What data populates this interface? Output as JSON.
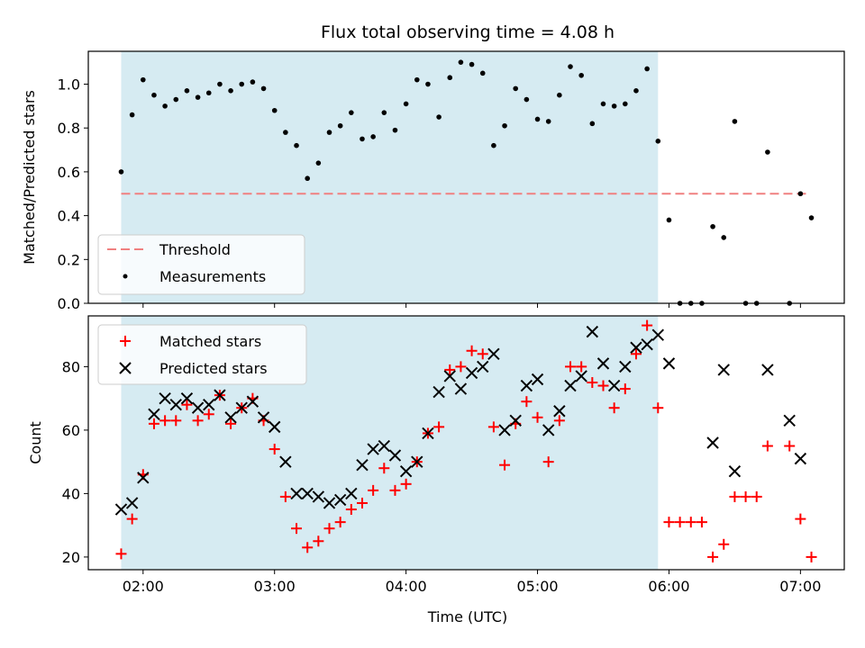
{
  "title": "Flux total observing time = 4.08 h",
  "colors": {
    "span": "#add8e6",
    "threshold": "#f08080",
    "measurement": "#000000",
    "matched": "#ff0000",
    "predicted": "#000000"
  },
  "chart_data": [
    {
      "type": "scatter",
      "ylabel": "Matched/Predicted stars",
      "xlabel": "",
      "xlim": [
        "01:35",
        "07:20"
      ],
      "ylim": [
        0,
        1.15
      ],
      "yticks": [
        "0.0",
        "0.2",
        "0.4",
        "0.6",
        "0.8",
        "1.0"
      ],
      "shaded_span": [
        "01:50",
        "05:55"
      ],
      "threshold": {
        "name": "Threshold",
        "value": 0.5,
        "x_range": [
          "01:50",
          "07:03"
        ],
        "style": "dashed"
      },
      "legend": {
        "location": "lower-left",
        "entries": [
          "Threshold",
          "Measurements"
        ]
      },
      "series": [
        {
          "name": "Measurements",
          "x": [
            "01:50",
            "01:55",
            "02:00",
            "02:05",
            "02:10",
            "02:15",
            "02:20",
            "02:25",
            "02:30",
            "02:35",
            "02:40",
            "02:45",
            "02:50",
            "02:55",
            "03:00",
            "03:05",
            "03:10",
            "03:15",
            "03:20",
            "03:25",
            "03:30",
            "03:35",
            "03:40",
            "03:45",
            "03:50",
            "03:55",
            "04:00",
            "04:05",
            "04:10",
            "04:15",
            "04:20",
            "04:25",
            "04:30",
            "04:35",
            "04:40",
            "04:45",
            "04:50",
            "04:55",
            "05:00",
            "05:05",
            "05:10",
            "05:15",
            "05:20",
            "05:25",
            "05:30",
            "05:35",
            "05:40",
            "05:45",
            "05:50",
            "05:55",
            "06:00",
            "06:05",
            "06:10",
            "06:15",
            "06:20",
            "06:25",
            "06:30",
            "06:35",
            "06:40",
            "06:45",
            "06:55",
            "07:00",
            "07:05"
          ],
          "y": [
            0.6,
            0.86,
            1.02,
            0.95,
            0.9,
            0.93,
            0.97,
            0.94,
            0.96,
            1.0,
            0.97,
            1.0,
            1.01,
            0.98,
            0.88,
            0.78,
            0.72,
            0.57,
            0.64,
            0.78,
            0.81,
            0.87,
            0.75,
            0.76,
            0.87,
            0.79,
            0.91,
            1.02,
            1.0,
            0.85,
            1.03,
            1.1,
            1.09,
            1.05,
            0.72,
            0.81,
            0.98,
            0.93,
            0.84,
            0.83,
            0.95,
            1.08,
            1.04,
            0.82,
            0.91,
            0.9,
            0.91,
            0.97,
            1.07,
            0.74,
            0.38,
            0.0,
            0.0,
            0.0,
            0.35,
            0.3,
            0.83,
            0.0,
            0.0,
            0.69,
            0.0,
            0.5,
            0.39
          ]
        }
      ]
    },
    {
      "type": "scatter",
      "ylabel": "Count",
      "xlabel": "Time (UTC)",
      "xlim": [
        "01:35",
        "07:20"
      ],
      "ylim": [
        16,
        96
      ],
      "yticks": [
        "20",
        "40",
        "60",
        "80"
      ],
      "xticks": [
        "02:00",
        "03:00",
        "04:00",
        "05:00",
        "06:00",
        "07:00"
      ],
      "shaded_span": [
        "01:50",
        "05:55"
      ],
      "legend": {
        "location": "upper-left",
        "entries": [
          "Matched stars",
          "Predicted stars"
        ]
      },
      "series": [
        {
          "name": "Matched stars",
          "marker": "plus",
          "x": [
            "01:50",
            "01:55",
            "02:00",
            "02:05",
            "02:10",
            "02:15",
            "02:20",
            "02:25",
            "02:30",
            "02:35",
            "02:40",
            "02:45",
            "02:50",
            "02:55",
            "03:00",
            "03:05",
            "03:10",
            "03:15",
            "03:20",
            "03:25",
            "03:30",
            "03:35",
            "03:40",
            "03:45",
            "03:50",
            "03:55",
            "04:00",
            "04:05",
            "04:10",
            "04:15",
            "04:20",
            "04:25",
            "04:30",
            "04:35",
            "04:40",
            "04:45",
            "04:50",
            "04:55",
            "05:00",
            "05:05",
            "05:10",
            "05:15",
            "05:20",
            "05:25",
            "05:30",
            "05:35",
            "05:40",
            "05:45",
            "05:50",
            "05:55",
            "06:00",
            "06:05",
            "06:10",
            "06:15",
            "06:20",
            "06:25",
            "06:30",
            "06:35",
            "06:40",
            "06:45",
            "06:55",
            "07:00",
            "07:05"
          ],
          "y": [
            21,
            32,
            46,
            62,
            63,
            63,
            68,
            63,
            65,
            71,
            62,
            67,
            70,
            63,
            54,
            39,
            29,
            23,
            25,
            29,
            31,
            35,
            37,
            41,
            48,
            41,
            43,
            50,
            59,
            61,
            79,
            80,
            85,
            84,
            61,
            49,
            62,
            69,
            64,
            50,
            63,
            80,
            80,
            75,
            74,
            67,
            73,
            84,
            93,
            67,
            31,
            31,
            31,
            31,
            20,
            24,
            39,
            39,
            39,
            55,
            55,
            32,
            20
          ]
        },
        {
          "name": "Predicted stars",
          "marker": "x",
          "x": [
            "01:50",
            "01:55",
            "02:00",
            "02:05",
            "02:10",
            "02:15",
            "02:20",
            "02:25",
            "02:30",
            "02:35",
            "02:40",
            "02:45",
            "02:50",
            "02:55",
            "03:00",
            "03:05",
            "03:10",
            "03:15",
            "03:20",
            "03:25",
            "03:30",
            "03:35",
            "03:40",
            "03:45",
            "03:50",
            "03:55",
            "04:00",
            "04:05",
            "04:10",
            "04:15",
            "04:20",
            "04:25",
            "04:30",
            "04:35",
            "04:40",
            "04:45",
            "04:50",
            "04:55",
            "05:00",
            "05:05",
            "05:10",
            "05:15",
            "05:20",
            "05:25",
            "05:30",
            "05:35",
            "05:40",
            "05:45",
            "05:50",
            "05:55",
            "06:00",
            "06:20",
            "06:25",
            "06:30",
            "06:45",
            "06:55",
            "07:00"
          ],
          "y": [
            35,
            37,
            45,
            65,
            70,
            68,
            70,
            67,
            68,
            71,
            64,
            67,
            69,
            64,
            61,
            50,
            40,
            40,
            39,
            37,
            38,
            40,
            49,
            54,
            55,
            52,
            47,
            50,
            59,
            72,
            77,
            73,
            78,
            80,
            84,
            60,
            63,
            74,
            76,
            60,
            66,
            74,
            77,
            91,
            81,
            74,
            80,
            86,
            87,
            90,
            81,
            56,
            79,
            47,
            79,
            63,
            51
          ]
        }
      ]
    }
  ]
}
